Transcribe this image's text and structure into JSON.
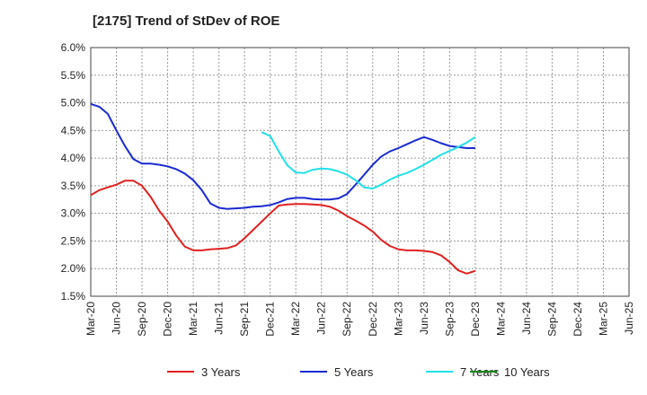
{
  "chart_data": {
    "type": "line",
    "title": "[2175]  Trend of StDev of ROE",
    "xlabel": "",
    "ylabel": "",
    "ylim": [
      1.5,
      6.0
    ],
    "yticks": [
      "1.5%",
      "2.0%",
      "2.5%",
      "3.0%",
      "3.5%",
      "4.0%",
      "4.5%",
      "5.0%",
      "5.5%",
      "6.0%"
    ],
    "xtick_labels": [
      "Mar-20",
      "Jun-20",
      "Sep-20",
      "Dec-20",
      "Mar-21",
      "Jun-21",
      "Sep-21",
      "Dec-21",
      "Mar-22",
      "Jun-22",
      "Sep-22",
      "Dec-22",
      "Mar-23",
      "Jun-23",
      "Sep-23",
      "Dec-23",
      "Mar-24",
      "Jun-24",
      "Sep-24",
      "Dec-24",
      "Mar-25",
      "Jun-25"
    ],
    "grid": true,
    "legend_position": "bottom",
    "series": [
      {
        "name": "3 Years",
        "color": "#e02020",
        "values": [
          3.33,
          3.42,
          3.47,
          3.52,
          3.59,
          3.59,
          3.5,
          3.3,
          3.05,
          2.85,
          2.6,
          2.4,
          2.33,
          2.33,
          2.35,
          2.36,
          2.37,
          2.42,
          2.55,
          2.7,
          2.85,
          3.0,
          3.14,
          3.16,
          3.17,
          3.17,
          3.16,
          3.15,
          3.12,
          3.05,
          2.95,
          2.87,
          2.78,
          2.67,
          2.52,
          2.41,
          2.35,
          2.33,
          2.33,
          2.32,
          2.3,
          2.24,
          2.12,
          1.97,
          1.91,
          1.96
        ]
      },
      {
        "name": "5 Years",
        "color": "#1a2ad0",
        "values": [
          4.98,
          4.93,
          4.8,
          4.5,
          4.22,
          3.98,
          3.9,
          3.9,
          3.88,
          3.85,
          3.8,
          3.72,
          3.6,
          3.42,
          3.18,
          3.1,
          3.08,
          3.09,
          3.1,
          3.12,
          3.13,
          3.15,
          3.2,
          3.26,
          3.28,
          3.28,
          3.26,
          3.25,
          3.25,
          3.27,
          3.35,
          3.52,
          3.7,
          3.88,
          4.03,
          4.12,
          4.18,
          4.25,
          4.32,
          4.38,
          4.33,
          4.27,
          4.22,
          4.2,
          4.18,
          4.18
        ]
      },
      {
        "name": "7 Years",
        "color": "#20e0e8",
        "values": [
          null,
          null,
          null,
          null,
          null,
          null,
          null,
          null,
          null,
          null,
          null,
          null,
          null,
          null,
          null,
          null,
          null,
          null,
          null,
          null,
          4.47,
          4.4,
          4.12,
          3.87,
          3.74,
          3.73,
          3.79,
          3.81,
          3.8,
          3.76,
          3.7,
          3.6,
          3.47,
          3.45,
          3.52,
          3.61,
          3.68,
          3.73,
          3.8,
          3.88,
          3.97,
          4.06,
          4.13,
          4.2,
          4.28,
          4.38
        ]
      },
      {
        "name": "10 Years",
        "color": "#1a8a1a",
        "values": []
      }
    ]
  }
}
